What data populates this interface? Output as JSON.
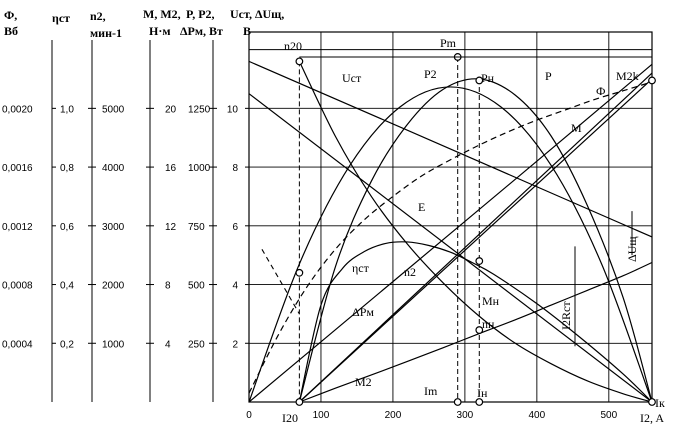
{
  "chart_data": {
    "type": "line",
    "title": "",
    "colors": {
      "ink": "#000000",
      "paper": "#ffffff"
    },
    "axes_headers": [
      {
        "top": "Ф,",
        "bottom": "Вб"
      },
      {
        "top": "ηст",
        "bottom": ""
      },
      {
        "top": "n2,",
        "bottom": "мин-1"
      },
      {
        "top": "M, M2,",
        "bottom": "Н·м"
      },
      {
        "top": "P, P2,",
        "bottom": "ΔPм, Вт"
      },
      {
        "top": "Uст, ΔUщ,",
        "bottom": "В"
      }
    ],
    "y_scales": [
      {
        "name": "Ф",
        "ticks": [
          "0,0004",
          "0,0008",
          "0,0012",
          "0,0016",
          "0,0020"
        ]
      },
      {
        "name": "ηст",
        "ticks": [
          "0,2",
          "0,4",
          "0,6",
          "0,8",
          "1,0"
        ]
      },
      {
        "name": "n2",
        "ticks": [
          "1000",
          "2000",
          "3000",
          "4000",
          "5000"
        ]
      },
      {
        "name": "M",
        "ticks": [
          "4",
          "8",
          "12",
          "16",
          "20"
        ]
      },
      {
        "name": "P",
        "ticks": [
          "250",
          "500",
          "750",
          "1000",
          "1250"
        ]
      },
      {
        "name": "U",
        "ticks": [
          "2",
          "4",
          "6",
          "8",
          "10"
        ]
      }
    ],
    "xlabel": "I2, A",
    "x_ticks": [
      "0",
      "100",
      "200",
      "300",
      "400",
      "500"
    ],
    "xlim": [
      0,
      560
    ],
    "ylim_U": [
      0,
      12.6
    ],
    "x_markers": {
      "I20": "I20",
      "Im": "Im",
      "Iн": "Iн",
      "Iк": "Iк"
    },
    "point_labels": {
      "n20": "n20",
      "Pm": "Pm",
      "Pн": "Pн",
      "M2k": "M2k",
      "Mн": "Mн",
      "nн": "nн"
    },
    "series": [
      {
        "name": "Uст",
        "x": [
          0,
          200,
          400,
          560
        ],
        "y": [
          11.6,
          9.47,
          7.33,
          5.62
        ]
      },
      {
        "name": "Е",
        "x": [
          0,
          560
        ],
        "y": [
          10.5,
          0
        ]
      },
      {
        "name": "ΔUщ",
        "x": [
          0,
          100,
          200,
          300,
          400,
          560
        ],
        "y": [
          0,
          2.05,
          4.1,
          6.15,
          8.2,
          11.5
        ]
      },
      {
        "name": "P",
        "x": [
          0,
          70,
          140,
          210,
          280,
          350,
          420,
          490,
          560
        ],
        "y": [
          0,
          4.7,
          8.05,
          10.05,
          10.73,
          10.05,
          8.05,
          4.7,
          0
        ]
      },
      {
        "name": "P2",
        "x": [
          70,
          120,
          170,
          220,
          270,
          320,
          370,
          420,
          470,
          520,
          560
        ],
        "y": [
          0,
          4.6,
          7.52,
          9.45,
          10.65,
          11.0,
          10.45,
          9.05,
          6.7,
          3.55,
          0
        ]
      },
      {
        "name": "ΔPм",
        "x": [
          70,
          120,
          170,
          220,
          270,
          320,
          370,
          420,
          470,
          520,
          560
        ],
        "y": [
          0,
          0.47,
          0.92,
          1.38,
          1.85,
          2.33,
          2.8,
          3.3,
          3.8,
          4.3,
          4.75
        ]
      },
      {
        "name": "M",
        "x": [
          70,
          560
        ],
        "y": [
          0,
          11.2
        ]
      },
      {
        "name": "M2",
        "x": [
          70,
          560
        ],
        "y": [
          0,
          11.0
        ]
      },
      {
        "name": "n2",
        "x": [
          70,
          120,
          170,
          220,
          270,
          320,
          370,
          420,
          470,
          520,
          560
        ],
        "y": [
          11.6,
          9.05,
          7.0,
          5.38,
          4.05,
          2.92,
          2.0,
          1.3,
          0.72,
          0.28,
          0
        ]
      },
      {
        "name": "ηст",
        "x": [
          70,
          100,
          130,
          160,
          190,
          220,
          250,
          280,
          310,
          340,
          400,
          460,
          520,
          560
        ],
        "y": [
          0,
          3.3,
          4.55,
          5.12,
          5.4,
          5.45,
          5.33,
          5.1,
          4.75,
          4.35,
          3.35,
          2.2,
          0.95,
          0
        ]
      },
      {
        "name": "Ф",
        "x": [
          0,
          40,
          80,
          120,
          160,
          200,
          240,
          280,
          320,
          360,
          400,
          440,
          480,
          520,
          560
        ],
        "y": [
          0.3,
          2.25,
          3.9,
          5.2,
          6.2,
          7.0,
          7.7,
          8.25,
          8.75,
          9.2,
          9.6,
          9.95,
          10.3,
          10.6,
          10.9
        ]
      }
    ],
    "curve_labels": {
      "Uст": "Uст",
      "Е": "Е",
      "P": "P",
      "P2": "P2",
      "ΔPм": "ΔPм",
      "M": "M",
      "M2": "M2",
      "n2": "n2",
      "ηст": "ηст",
      "Ф": "Ф",
      "ΔUщ": "ΔUщ",
      "I2Rст": "I2Rст"
    },
    "grid": true
  }
}
